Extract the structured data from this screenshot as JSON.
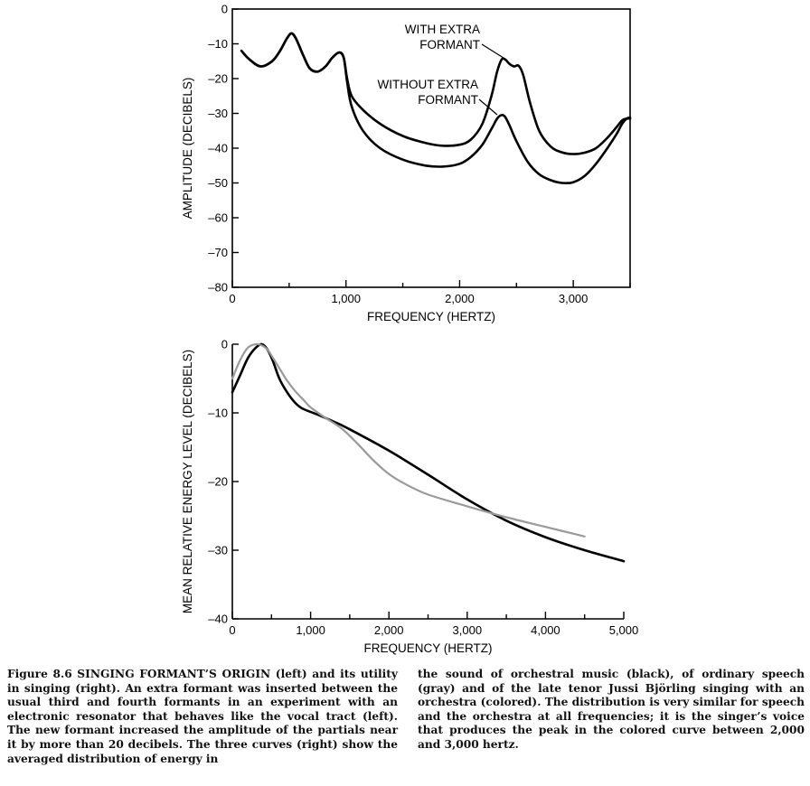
{
  "chart_data": [
    {
      "type": "line",
      "xlabel": "FREQUENCY (HERTZ)",
      "ylabel": "AMPLITUDE (DECIBELS)",
      "xlim": [
        0,
        3500
      ],
      "ylim": [
        -80,
        0
      ],
      "xticks": [
        0,
        1000,
        2000,
        3000
      ],
      "xtick_labels": [
        "0",
        "1,000",
        "2,000",
        "3,000"
      ],
      "xminor": [
        500,
        1500,
        2500,
        3500
      ],
      "yticks": [
        0,
        -10,
        -20,
        -30,
        -40,
        -50,
        -60,
        -70,
        -80
      ],
      "ytick_labels": [
        "0",
        "–10",
        "–20",
        "–30",
        "–40",
        "–50",
        "–60",
        "–70",
        "–80"
      ],
      "annotations": [
        {
          "lines": [
            "WITH EXTRA",
            "FORMANT"
          ],
          "points_to": "with_extra"
        },
        {
          "lines": [
            "WITHOUT EXTRA",
            "FORMANT"
          ],
          "points_to": "without_extra"
        }
      ],
      "series": [
        {
          "key": "with_extra",
          "color": "#000000",
          "x": [
            80,
            150,
            250,
            350,
            420,
            480,
            520,
            560,
            620,
            680,
            750,
            820,
            880,
            940,
            980,
            1010,
            1050,
            1150,
            1300,
            1500,
            1700,
            1850,
            2000,
            2100,
            2200,
            2280,
            2330,
            2370,
            2400,
            2440,
            2480,
            2520,
            2560,
            2620,
            2700,
            2800,
            2900,
            3000,
            3100,
            3200,
            3300,
            3380,
            3430,
            3470,
            3500
          ],
          "y": [
            -12,
            -14.5,
            -16.5,
            -15,
            -12,
            -8.5,
            -7,
            -8.5,
            -13,
            -17,
            -18,
            -16.5,
            -14,
            -12.5,
            -14,
            -20,
            -25,
            -29,
            -33,
            -36.5,
            -38.5,
            -39.3,
            -39,
            -37.5,
            -33,
            -25,
            -18,
            -14.5,
            -14.5,
            -15.8,
            -16.5,
            -16.3,
            -19,
            -27,
            -35,
            -39.5,
            -41.2,
            -41.7,
            -41.3,
            -40,
            -37,
            -34,
            -32,
            -31.5,
            -31.5
          ]
        },
        {
          "key": "without_extra",
          "color": "#000000",
          "x": [
            80,
            150,
            250,
            350,
            420,
            480,
            520,
            560,
            620,
            680,
            750,
            820,
            880,
            940,
            980,
            1010,
            1050,
            1150,
            1300,
            1500,
            1700,
            1850,
            2000,
            2100,
            2200,
            2280,
            2330,
            2370,
            2400,
            2440,
            2500,
            2600,
            2700,
            2800,
            2900,
            3000,
            3100,
            3200,
            3300,
            3380,
            3430,
            3470,
            3500
          ],
          "y": [
            -12,
            -14.5,
            -16.5,
            -15,
            -12,
            -8.5,
            -7,
            -8.5,
            -13,
            -17,
            -18,
            -16.5,
            -14,
            -12.5,
            -14,
            -21,
            -28,
            -35,
            -40,
            -43.3,
            -45,
            -45.3,
            -44.5,
            -42.5,
            -39,
            -34.5,
            -31.5,
            -30.5,
            -31,
            -33.5,
            -38,
            -44,
            -47.5,
            -49.2,
            -50,
            -49.8,
            -48,
            -44.5,
            -40,
            -36,
            -33,
            -31.5,
            -31.2
          ]
        }
      ]
    },
    {
      "type": "line",
      "xlabel": "FREQUENCY (HERTZ)",
      "ylabel": "MEAN RELATIVE ENERGY LEVEL (DECIBELS)",
      "xlim": [
        0,
        5000
      ],
      "ylim": [
        -40,
        0
      ],
      "xticks": [
        0,
        1000,
        2000,
        3000,
        4000,
        5000
      ],
      "xtick_labels": [
        "0",
        "1,000",
        "2,000",
        "3,000",
        "4,000",
        "5,000"
      ],
      "xminor": [
        500,
        1500,
        2500,
        3500,
        4500
      ],
      "yticks": [
        0,
        -10,
        -20,
        -30,
        -40
      ],
      "ytick_labels": [
        "0",
        "–10",
        "–20",
        "–30",
        "–40"
      ],
      "series": [
        {
          "key": "orchestral_music",
          "color": "#000000",
          "x": [
            0,
            100,
            200,
            300,
            380,
            450,
            520,
            600,
            700,
            800,
            900,
            1100,
            1300,
            1500,
            2000,
            2500,
            3000,
            3500,
            4000,
            4500,
            5000
          ],
          "y": [
            -7,
            -4.5,
            -2,
            -0.5,
            0,
            -0.8,
            -2.5,
            -5,
            -7,
            -8.5,
            -9.4,
            -10.3,
            -11.3,
            -12.4,
            -15.5,
            -19,
            -22.6,
            -25.7,
            -28.1,
            -30,
            -31.6
          ]
        },
        {
          "key": "ordinary_speech",
          "color": "#9a9a9a",
          "x": [
            0,
            100,
            200,
            300,
            380,
            450,
            520,
            600,
            700,
            800,
            900,
            1000,
            1200,
            1400,
            1600,
            1800,
            2000,
            2200,
            2500,
            3000,
            3500,
            4000,
            4500
          ],
          "y": [
            -5,
            -2.3,
            -0.5,
            0,
            -0.2,
            -0.8,
            -2,
            -3.5,
            -5.3,
            -6.8,
            -8,
            -9.2,
            -10.8,
            -12.3,
            -14.5,
            -16.9,
            -18.9,
            -20.3,
            -21.9,
            -23.6,
            -25.2,
            -26.6,
            -28
          ]
        }
      ]
    }
  ],
  "caption": {
    "left": "Figure 8.6 SINGING FORMANT’S ORIGIN (left) and its utility in singing (right). An extra formant was inserted between the usual third and fourth formants in an experiment with an electronic resonator that behaves like the vocal tract (left). The new formant increased the amplitude of the partials near it by more than 20 decibels. The three curves (right) show the averaged distribution of energy in",
    "right": "the sound of orchestral music (black), of ordinary speech (gray) and of the late tenor Jussi Björling singing with an orchestra (colored). The distribution is very similar for speech and the orchestra at all frequencies; it is the singer’s voice that produces the peak in the colored curve between 2,000 and 3,000 hertz."
  }
}
